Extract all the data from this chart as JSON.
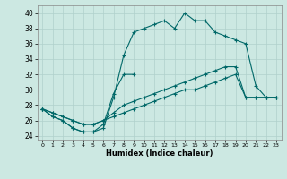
{
  "xlabel": "Humidex (Indice chaleur)",
  "xlim": [
    -0.5,
    23.5
  ],
  "ylim": [
    23.5,
    41.0
  ],
  "xticks": [
    0,
    1,
    2,
    3,
    4,
    5,
    6,
    7,
    8,
    9,
    10,
    11,
    12,
    13,
    14,
    15,
    16,
    17,
    18,
    19,
    20,
    21,
    22,
    23
  ],
  "yticks": [
    24,
    26,
    28,
    30,
    32,
    34,
    36,
    38,
    40
  ],
  "bg_color": "#cce8e2",
  "grid_color": "#b0d0cc",
  "line_color": "#006868",
  "line1_x": [
    0,
    1,
    2,
    3,
    4,
    5,
    6,
    7,
    8,
    9,
    10,
    11,
    12,
    13,
    14,
    15,
    16,
    17,
    18,
    19,
    20,
    21,
    22,
    23
  ],
  "line1_y": [
    27.5,
    26.5,
    26.0,
    25.0,
    24.5,
    24.5,
    25.0,
    29.0,
    34.5,
    37.5,
    38.0,
    38.5,
    39.0,
    38.0,
    40.0,
    39.0,
    39.0,
    37.5,
    37.0,
    36.5,
    36.0,
    30.5,
    29.0,
    29.0
  ],
  "line2_x": [
    0,
    1,
    2,
    3,
    4,
    5,
    6,
    7,
    8,
    9
  ],
  "line2_y": [
    27.5,
    26.5,
    26.0,
    25.0,
    24.5,
    24.5,
    25.5,
    29.5,
    32.0,
    32.0
  ],
  "line3_x": [
    0,
    1,
    2,
    3,
    4,
    5,
    6,
    7,
    8,
    9,
    10,
    11,
    12,
    13,
    14,
    15,
    16,
    17,
    18,
    19,
    20,
    21,
    22,
    23
  ],
  "line3_y": [
    27.5,
    27.0,
    26.5,
    26.0,
    25.5,
    25.5,
    26.0,
    27.0,
    28.0,
    28.5,
    29.0,
    29.5,
    30.0,
    30.5,
    31.0,
    31.5,
    32.0,
    32.5,
    33.0,
    33.0,
    29.0,
    29.0,
    29.0,
    29.0
  ],
  "line4_x": [
    0,
    1,
    2,
    3,
    4,
    5,
    6,
    7,
    8,
    9,
    10,
    11,
    12,
    13,
    14,
    15,
    16,
    17,
    18,
    19,
    20,
    21,
    22,
    23
  ],
  "line4_y": [
    27.5,
    27.0,
    26.5,
    26.0,
    25.5,
    25.5,
    26.0,
    26.5,
    27.0,
    27.5,
    28.0,
    28.5,
    29.0,
    29.5,
    30.0,
    30.0,
    30.5,
    31.0,
    31.5,
    32.0,
    29.0,
    29.0,
    29.0,
    29.0
  ]
}
